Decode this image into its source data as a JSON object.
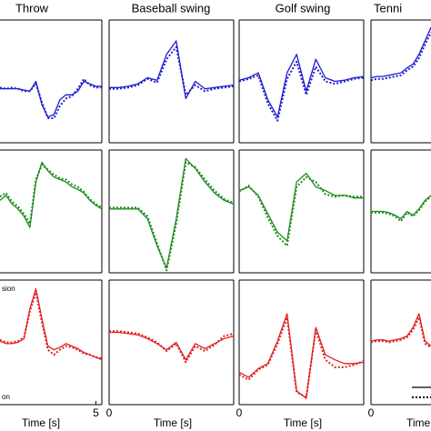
{
  "chart_data": [
    {
      "type": "line",
      "title": "Throw",
      "x": [
        1.8,
        2.0,
        2.2,
        2.4,
        2.6,
        2.8,
        3.0,
        3.2,
        3.4,
        3.6,
        3.8,
        4.0,
        4.2,
        4.4,
        4.6,
        4.8,
        5.0,
        5.2
      ],
      "xlim": [
        1.8,
        5.2
      ],
      "ylim": [
        0,
        1
      ],
      "series": [
        {
          "color": "#1c1cd0",
          "style": "solid",
          "values": [
            0.44,
            0.44,
            0.44,
            0.44,
            0.43,
            0.42,
            0.5,
            0.31,
            0.21,
            0.23,
            0.35,
            0.39,
            0.39,
            0.42,
            0.5,
            0.48,
            0.46,
            0.46
          ]
        },
        {
          "color": "#1c1cd0",
          "style": "dotted",
          "values": [
            0.45,
            0.44,
            0.45,
            0.44,
            0.42,
            0.42,
            0.48,
            0.33,
            0.2,
            0.2,
            0.3,
            0.36,
            0.38,
            0.44,
            0.52,
            0.47,
            0.45,
            0.45
          ]
        }
      ]
    },
    {
      "type": "line",
      "title": "Baseball swing",
      "x": [
        0,
        0.4,
        0.8,
        1.2,
        1.6,
        2.0,
        2.4,
        2.8,
        3.2,
        3.6,
        4.0,
        4.4,
        4.8,
        5.2
      ],
      "xlim": [
        0,
        5.2
      ],
      "ylim": [
        0,
        1
      ],
      "series": [
        {
          "color": "#1c1cd0",
          "style": "solid",
          "values": [
            0.45,
            0.45,
            0.46,
            0.48,
            0.53,
            0.51,
            0.72,
            0.83,
            0.36,
            0.5,
            0.44,
            0.45,
            0.46,
            0.47
          ]
        },
        {
          "color": "#1c1cd0",
          "style": "dotted",
          "values": [
            0.44,
            0.44,
            0.45,
            0.47,
            0.52,
            0.49,
            0.68,
            0.78,
            0.39,
            0.47,
            0.42,
            0.44,
            0.45,
            0.46
          ]
        }
      ]
    },
    {
      "type": "line",
      "title": "Golf swing",
      "x": [
        0,
        0.4,
        0.8,
        1.2,
        1.6,
        2.0,
        2.4,
        2.8,
        3.2,
        3.6,
        4.0,
        4.4,
        4.8,
        5.2
      ],
      "xlim": [
        0,
        5.2
      ],
      "ylim": [
        0,
        1
      ],
      "series": [
        {
          "color": "#1c1cd0",
          "style": "solid",
          "values": [
            0.51,
            0.53,
            0.57,
            0.35,
            0.21,
            0.57,
            0.72,
            0.42,
            0.68,
            0.53,
            0.5,
            0.51,
            0.53,
            0.54
          ]
        },
        {
          "color": "#1c1cd0",
          "style": "dotted",
          "values": [
            0.5,
            0.52,
            0.55,
            0.32,
            0.18,
            0.52,
            0.66,
            0.39,
            0.62,
            0.5,
            0.48,
            0.5,
            0.52,
            0.53
          ]
        }
      ]
    },
    {
      "type": "line",
      "title": "Tenni",
      "x": [
        0,
        0.25,
        0.5,
        0.75,
        1.0,
        1.25,
        1.5,
        1.75,
        2.0,
        2.25,
        2.5
      ],
      "xlim": [
        0,
        2.5
      ],
      "ylim": [
        0,
        1
      ],
      "series": [
        {
          "color": "#1c1cd0",
          "style": "solid",
          "values": [
            0.53,
            0.54,
            0.54,
            0.55,
            0.56,
            0.57,
            0.61,
            0.64,
            0.72,
            0.83,
            0.94
          ]
        },
        {
          "color": "#1c1cd0",
          "style": "dotted",
          "values": [
            0.51,
            0.52,
            0.52,
            0.53,
            0.54,
            0.55,
            0.59,
            0.62,
            0.69,
            0.8,
            0.9
          ]
        }
      ]
    },
    {
      "type": "line",
      "x": [
        1.8,
        2.0,
        2.2,
        2.4,
        2.6,
        2.8,
        3.0,
        3.2,
        3.4,
        3.6,
        3.8,
        4.0,
        4.2,
        4.4,
        4.6,
        4.8,
        5.0,
        5.2
      ],
      "xlim": [
        1.8,
        5.2
      ],
      "ylim": [
        0,
        1
      ],
      "series": [
        {
          "color": "#1e8c1e",
          "style": "solid",
          "values": [
            0.59,
            0.63,
            0.56,
            0.52,
            0.46,
            0.37,
            0.74,
            0.9,
            0.83,
            0.78,
            0.76,
            0.74,
            0.7,
            0.68,
            0.65,
            0.59,
            0.55,
            0.52
          ]
        },
        {
          "color": "#1e8c1e",
          "style": "dotted",
          "values": [
            0.62,
            0.65,
            0.58,
            0.54,
            0.48,
            0.4,
            0.76,
            0.88,
            0.84,
            0.8,
            0.77,
            0.76,
            0.72,
            0.7,
            0.66,
            0.6,
            0.56,
            0.53
          ]
        }
      ]
    },
    {
      "type": "line",
      "x": [
        0,
        0.4,
        0.8,
        1.2,
        1.6,
        2.0,
        2.4,
        2.8,
        3.2,
        3.6,
        4.0,
        4.4,
        4.8,
        5.2
      ],
      "xlim": [
        0,
        5.2
      ],
      "ylim": [
        0,
        1
      ],
      "series": [
        {
          "color": "#1e8c1e",
          "style": "solid",
          "values": [
            0.52,
            0.52,
            0.52,
            0.52,
            0.44,
            0.22,
            0.04,
            0.44,
            0.93,
            0.85,
            0.74,
            0.65,
            0.59,
            0.56
          ]
        },
        {
          "color": "#1e8c1e",
          "style": "dotted",
          "values": [
            0.53,
            0.53,
            0.53,
            0.53,
            0.46,
            0.24,
            0.02,
            0.4,
            0.9,
            0.86,
            0.76,
            0.67,
            0.6,
            0.57
          ]
        }
      ]
    },
    {
      "type": "line",
      "x": [
        0,
        0.4,
        0.8,
        1.2,
        1.6,
        2.0,
        2.4,
        2.8,
        3.2,
        3.6,
        4.0,
        4.4,
        4.8,
        5.2
      ],
      "xlim": [
        0,
        5.2
      ],
      "ylim": [
        0,
        1
      ],
      "series": [
        {
          "color": "#1e8c1e",
          "style": "solid",
          "values": [
            0.67,
            0.7,
            0.63,
            0.48,
            0.33,
            0.26,
            0.74,
            0.81,
            0.7,
            0.67,
            0.63,
            0.63,
            0.61,
            0.61
          ]
        },
        {
          "color": "#1e8c1e",
          "style": "dotted",
          "values": [
            0.66,
            0.71,
            0.62,
            0.45,
            0.3,
            0.22,
            0.7,
            0.78,
            0.74,
            0.64,
            0.62,
            0.63,
            0.62,
            0.62
          ]
        }
      ]
    },
    {
      "type": "line",
      "x": [
        0,
        0.25,
        0.5,
        0.75,
        1.0,
        1.25,
        1.5,
        1.75,
        2.0,
        2.25,
        2.5
      ],
      "xlim": [
        0,
        2.5
      ],
      "ylim": [
        0,
        1
      ],
      "series": [
        {
          "color": "#1e8c1e",
          "style": "solid",
          "values": [
            0.5,
            0.5,
            0.5,
            0.49,
            0.47,
            0.44,
            0.5,
            0.47,
            0.52,
            0.59,
            0.63
          ]
        },
        {
          "color": "#1e8c1e",
          "style": "dotted",
          "values": [
            0.49,
            0.49,
            0.49,
            0.48,
            0.46,
            0.42,
            0.49,
            0.46,
            0.51,
            0.58,
            0.62
          ]
        }
      ]
    },
    {
      "type": "line",
      "x": [
        1.8,
        2.0,
        2.2,
        2.4,
        2.6,
        2.8,
        3.0,
        3.2,
        3.4,
        3.6,
        3.8,
        4.0,
        4.2,
        4.4,
        4.6,
        4.8,
        5.0,
        5.2
      ],
      "xlim": [
        1.8,
        5.2
      ],
      "ylim": [
        0,
        1
      ],
      "xticks": [
        5
      ],
      "xlabel": "Time [s]",
      "annotations": [
        "sion",
        "on"
      ],
      "series": [
        {
          "color": "#e02020",
          "style": "solid",
          "values": [
            0.51,
            0.49,
            0.49,
            0.5,
            0.53,
            0.77,
            0.93,
            0.69,
            0.47,
            0.44,
            0.46,
            0.49,
            0.47,
            0.45,
            0.42,
            0.4,
            0.38,
            0.36
          ]
        },
        {
          "color": "#e02020",
          "style": "dotted",
          "values": [
            0.52,
            0.5,
            0.5,
            0.51,
            0.54,
            0.75,
            0.9,
            0.66,
            0.44,
            0.4,
            0.44,
            0.47,
            0.46,
            0.44,
            0.41,
            0.4,
            0.38,
            0.37
          ]
        }
      ]
    },
    {
      "type": "line",
      "x": [
        0,
        0.4,
        0.8,
        1.2,
        1.6,
        2.0,
        2.4,
        2.8,
        3.2,
        3.6,
        4.0,
        4.4,
        4.8,
        5.2
      ],
      "xlim": [
        0,
        5.2
      ],
      "ylim": [
        0,
        1
      ],
      "xticks": [
        0
      ],
      "xlabel": "Time [s]",
      "series": [
        {
          "color": "#e02020",
          "style": "solid",
          "values": [
            0.58,
            0.58,
            0.57,
            0.56,
            0.53,
            0.49,
            0.44,
            0.5,
            0.36,
            0.49,
            0.45,
            0.49,
            0.53,
            0.55
          ]
        },
        {
          "color": "#e02020",
          "style": "dotted",
          "values": [
            0.59,
            0.59,
            0.58,
            0.57,
            0.54,
            0.5,
            0.43,
            0.49,
            0.34,
            0.47,
            0.43,
            0.48,
            0.55,
            0.57
          ]
        }
      ]
    },
    {
      "type": "line",
      "x": [
        0,
        0.4,
        0.8,
        1.2,
        1.6,
        2.0,
        2.4,
        2.8,
        3.2,
        3.6,
        4.0,
        4.4,
        4.8,
        5.2
      ],
      "xlim": [
        0,
        5.2
      ],
      "ylim": [
        0,
        1
      ],
      "xticks": [
        0
      ],
      "xlabel": "Time [s]",
      "series": [
        {
          "color": "#e02020",
          "style": "solid",
          "values": [
            0.26,
            0.22,
            0.29,
            0.33,
            0.51,
            0.73,
            0.11,
            0.05,
            0.62,
            0.4,
            0.36,
            0.33,
            0.33,
            0.34
          ]
        },
        {
          "color": "#e02020",
          "style": "dotted",
          "values": [
            0.24,
            0.2,
            0.28,
            0.32,
            0.49,
            0.7,
            0.1,
            0.06,
            0.6,
            0.36,
            0.3,
            0.3,
            0.32,
            0.35
          ]
        }
      ]
    },
    {
      "type": "line",
      "x": [
        0,
        0.25,
        0.5,
        0.75,
        1.0,
        1.25,
        1.5,
        1.75,
        2.0,
        2.25,
        2.5
      ],
      "xlim": [
        0,
        2.5
      ],
      "ylim": [
        0,
        1
      ],
      "xticks": [
        0
      ],
      "xlabel": "Time",
      "series": [
        {
          "color": "#e02020",
          "style": "solid",
          "values": [
            0.51,
            0.52,
            0.52,
            0.51,
            0.52,
            0.53,
            0.55,
            0.62,
            0.73,
            0.51,
            0.47
          ]
        },
        {
          "color": "#e02020",
          "style": "dotted",
          "values": [
            0.5,
            0.51,
            0.51,
            0.5,
            0.51,
            0.52,
            0.54,
            0.6,
            0.7,
            0.49,
            0.46
          ]
        }
      ]
    }
  ]
}
